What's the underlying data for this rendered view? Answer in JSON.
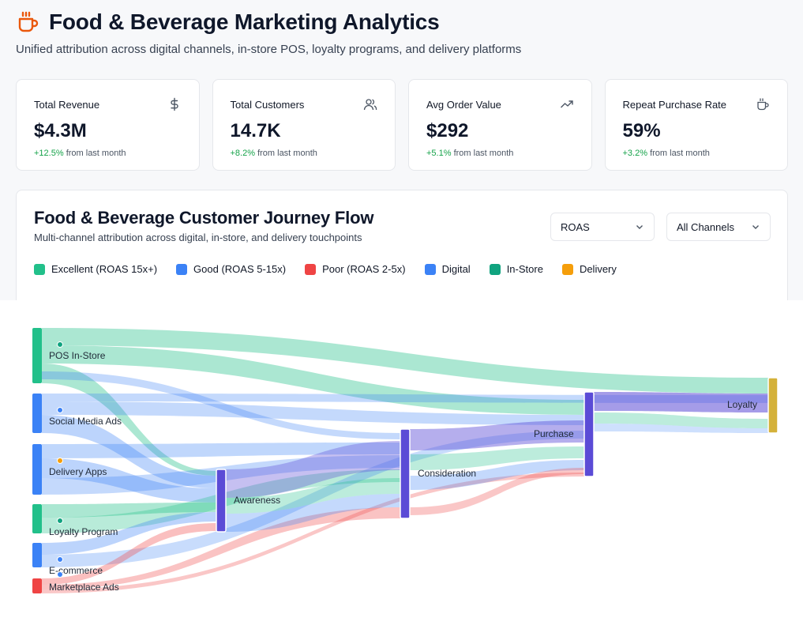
{
  "header": {
    "title": "Food & Beverage Marketing Analytics",
    "subtitle": "Unified attribution across digital channels, in-store POS, loyalty programs, and delivery platforms",
    "brand_icon": "coffee-cup-icon"
  },
  "kpis": [
    {
      "label": "Total Revenue",
      "value": "$4.3M",
      "change_pct": "+12.5%",
      "change_suffix": "from last month",
      "icon": "dollar-icon"
    },
    {
      "label": "Total Customers",
      "value": "14.7K",
      "change_pct": "+8.2%",
      "change_suffix": "from last month",
      "icon": "users-icon"
    },
    {
      "label": "Avg Order Value",
      "value": "$292",
      "change_pct": "+5.1%",
      "change_suffix": "from last month",
      "icon": "trending-up-icon"
    },
    {
      "label": "Repeat Purchase Rate",
      "value": "59%",
      "change_pct": "+3.2%",
      "change_suffix": "from last month",
      "icon": "coffee-cup-icon"
    }
  ],
  "panel": {
    "title": "Food & Beverage Customer Journey Flow",
    "subtitle": "Multi-channel attribution across digital, in-store, and delivery touchpoints",
    "metric_select": "ROAS",
    "channel_select": "All Channels"
  },
  "legend": [
    {
      "label": "Excellent (ROAS 15x+)",
      "color": "#22c08a"
    },
    {
      "label": "Good (ROAS 5-15x)",
      "color": "#3b82f6"
    },
    {
      "label": "Poor (ROAS 2-5x)",
      "color": "#ef4444"
    },
    {
      "label": "Digital",
      "color": "#3b82f6"
    },
    {
      "label": "In-Store",
      "color": "#10a37f"
    },
    {
      "label": "Delivery",
      "color": "#f59e0b"
    }
  ],
  "colors": {
    "excellent": "#22c08a",
    "good": "#3b82f6",
    "poor": "#ef4444",
    "stage": "#5b4bd6",
    "loyalty": "#d4b13a"
  },
  "chart_data": {
    "type": "sankey",
    "sources": [
      {
        "name": "POS In-Store",
        "channel": "In-Store",
        "weight": 20
      },
      {
        "name": "Social Media Ads",
        "channel": "Digital",
        "weight": 14
      },
      {
        "name": "Delivery Apps",
        "channel": "Delivery",
        "weight": 18
      },
      {
        "name": "Loyalty Program",
        "channel": "In-Store",
        "weight": 10
      },
      {
        "name": "E-commerce",
        "channel": "Digital",
        "weight": 9
      },
      {
        "name": "Marketplace Ads",
        "channel": "Digital",
        "weight": 5
      }
    ],
    "stages": [
      "Awareness",
      "Consideration",
      "Purchase",
      "Loyalty"
    ]
  }
}
